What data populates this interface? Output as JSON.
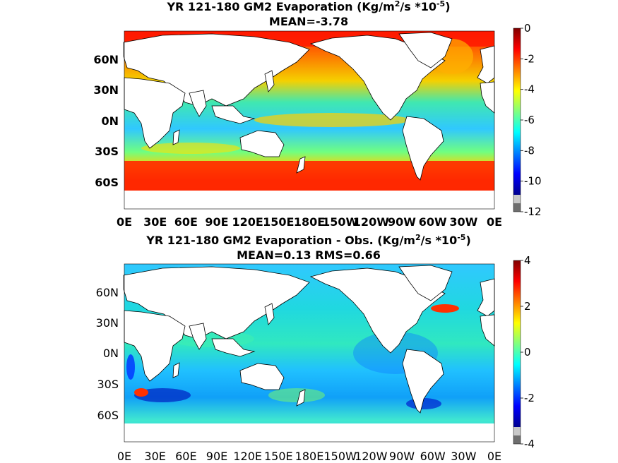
{
  "chart_data": [
    {
      "type": "heatmap",
      "title_prefix": "YR 121-180 GM2  Evaporation (Kg/m",
      "title_sup1": "2",
      "title_mid": "/s *10",
      "title_sup2": "-5",
      "title_suffix": ")",
      "subtitle": "MEAN=-3.78",
      "xticks": [
        "0E",
        "30E",
        "60E",
        "90E",
        "120E",
        "150E",
        "180E",
        "150W",
        "120W",
        "90W",
        "60W",
        "30W",
        "0E"
      ],
      "yticks": [
        "60N",
        "30N",
        "0N",
        "30S",
        "60S"
      ],
      "colorbar": {
        "range": [
          -12,
          0
        ],
        "ticks": [
          "0",
          "-2",
          "-4",
          "-6",
          "-8",
          "-10",
          "-12"
        ]
      },
      "mean": -3.78
    },
    {
      "type": "heatmap",
      "title_prefix": "YR 121-180 GM2 Evaporation - Obs. (Kg/m",
      "title_sup1": "2",
      "title_mid": "/s *10",
      "title_sup2": "-5",
      "title_suffix": ")",
      "subtitle": "MEAN=0.13   RMS=0.66",
      "xticks": [
        "0E",
        "30E",
        "60E",
        "90E",
        "120E",
        "150E",
        "180E",
        "150W",
        "120W",
        "90W",
        "60W",
        "30W",
        "0E"
      ],
      "yticks": [
        "60N",
        "30N",
        "0N",
        "30S",
        "60S"
      ],
      "colorbar": {
        "range": [
          -4,
          4
        ],
        "ticks": [
          "4",
          "2",
          "0",
          "-2",
          "-4"
        ]
      },
      "mean": 0.13,
      "rms": 0.66
    }
  ]
}
